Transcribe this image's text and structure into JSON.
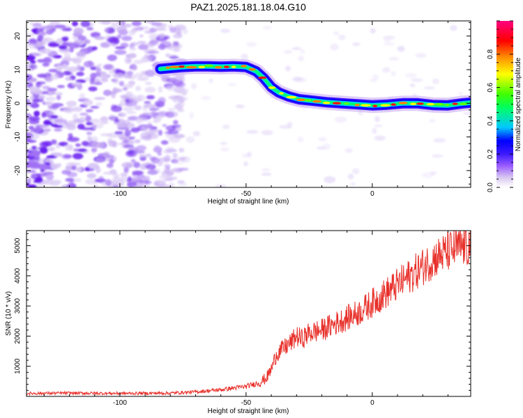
{
  "title": "PAZ1.2025.181.18.04.G10",
  "chart_data": [
    {
      "type": "heatmap",
      "xlabel": "Height of straight line (km)",
      "ylabel": "Frequency (Hz)",
      "xlim": [
        -137,
        39
      ],
      "ylim": [
        -25,
        24.5
      ],
      "x_ticks": [
        "-100",
        "-50",
        "0"
      ],
      "y_ticks": [
        "-20",
        "-10",
        "0",
        "10",
        "20"
      ],
      "colorbar": {
        "label": "Normalized spectral amplitude",
        "range": [
          0,
          1
        ],
        "ticks": [
          "0.0",
          "0.2",
          "0.4",
          "0.6",
          "0.8"
        ],
        "colormap": [
          "#d8c8f0",
          "#9a5cff",
          "#3d1aff",
          "#0000ff",
          "#00c8ff",
          "#00ff60",
          "#40ff00",
          "#ffff00",
          "#ff9000",
          "#ff0000",
          "#ff0080"
        ]
      },
      "ridge": {
        "x": [
          -84,
          -80,
          -75,
          -70,
          -65,
          -60,
          -55,
          -50,
          -46,
          -43,
          -40,
          -37,
          -33,
          -29,
          -24,
          -18,
          -12,
          -6,
          0,
          6,
          12,
          18,
          24,
          30,
          36,
          39
        ],
        "y": [
          10.2,
          10.5,
          10.8,
          11.0,
          11.0,
          10.9,
          11.0,
          10.8,
          9.5,
          7.5,
          4.8,
          3.2,
          2.0,
          1.2,
          0.8,
          0.3,
          0.0,
          -0.3,
          -0.6,
          -0.4,
          0.0,
          0.0,
          -0.5,
          -0.6,
          0.0,
          0.2
        ]
      },
      "noise_region_x": [
        -137,
        -78
      ]
    },
    {
      "type": "line",
      "xlabel": "Height of straight line (km)",
      "ylabel": "SNR (10 * v/v)",
      "xlim": [
        -137,
        39
      ],
      "ylim": [
        0,
        5500
      ],
      "x_ticks": [
        "-100",
        "-50",
        "0"
      ],
      "y_ticks": [
        "1000",
        "2000",
        "3000",
        "4000",
        "5000"
      ],
      "series": [
        {
          "color": "#e8302a",
          "x": [
            -137,
            -120,
            -100,
            -80,
            -70,
            -60,
            -55,
            -50,
            -45,
            -42,
            -40,
            -38,
            -35,
            -32,
            -30,
            -28,
            -25,
            -20,
            -15,
            -10,
            -5,
            0,
            5,
            10,
            15,
            20,
            25,
            30,
            35,
            39
          ],
          "y": [
            100,
            110,
            100,
            110,
            150,
            220,
            280,
            330,
            450,
            600,
            900,
            1400,
            1600,
            1800,
            2000,
            1900,
            2100,
            2200,
            2400,
            2600,
            2800,
            3100,
            3400,
            3700,
            4000,
            4300,
            4600,
            4800,
            4950,
            5000
          ]
        }
      ]
    }
  ]
}
